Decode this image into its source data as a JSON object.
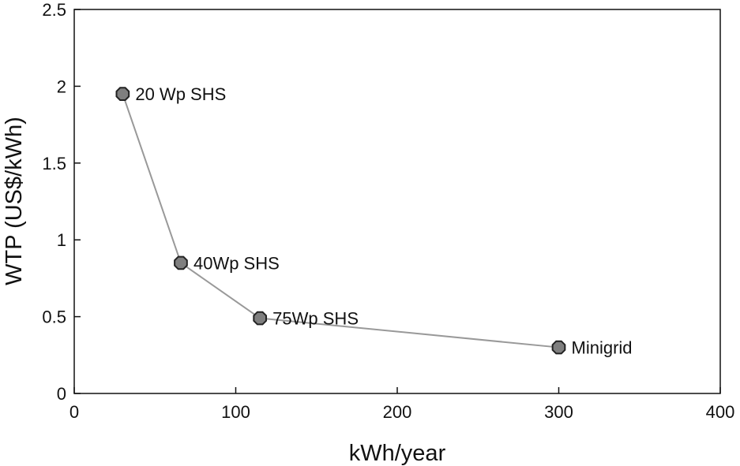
{
  "chart_data": {
    "type": "line",
    "title": "",
    "xlabel": "kWh/year",
    "ylabel": "WTP (US$/kWh)",
    "xlim": [
      0,
      400
    ],
    "ylim": [
      0,
      2.5
    ],
    "xticks": [
      0,
      100,
      200,
      300,
      400
    ],
    "xtick_labels": [
      "0",
      "100",
      "200",
      "300",
      "400"
    ],
    "yticks": [
      0,
      0.5,
      1,
      1.5,
      2,
      2.5
    ],
    "ytick_labels": [
      "0",
      "0.5",
      "1",
      "1.5",
      "2",
      "2.5"
    ],
    "grid": false,
    "series": [
      {
        "x": [
          30,
          66,
          115,
          300
        ],
        "y": [
          1.95,
          0.85,
          0.49,
          0.3
        ],
        "labels": [
          "20 Wp SHS",
          "40Wp SHS",
          "75Wp SHS",
          "Minigrid"
        ],
        "color": "#999999",
        "marker_color": "#7f7f7f",
        "marker_edge_color": "#222222"
      }
    ]
  }
}
